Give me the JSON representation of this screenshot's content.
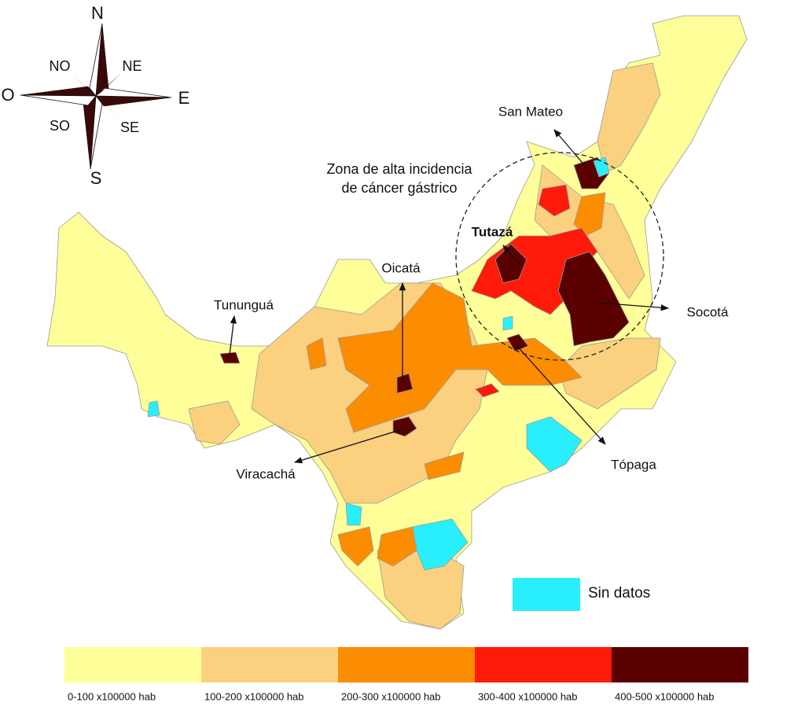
{
  "compass": {
    "n": "N",
    "ne": "NE",
    "e": "E",
    "se": "SE",
    "s": "S",
    "so": "SO",
    "o": "O",
    "no": "NO"
  },
  "annotation": {
    "zone": [
      "Zona de alta incidencia",
      "de cáncer gástrico"
    ]
  },
  "places": [
    {
      "label": "San Mateo"
    },
    {
      "label": "Tutazá"
    },
    {
      "label": "Oicatá"
    },
    {
      "label": "Tununguá"
    },
    {
      "label": "Socotá"
    },
    {
      "label": "Tópaga"
    },
    {
      "label": "Viracachá"
    }
  ],
  "legend": {
    "items": [
      {
        "label": "0-100 x100000 hab",
        "color": "#ffff99"
      },
      {
        "label": "100-200 x100000 hab",
        "color": "#fbd17f"
      },
      {
        "label": "200-300 x100000 hab",
        "color": "#fc8c00"
      },
      {
        "label": "300-400 x100000 hab",
        "color": "#ff1a0a"
      },
      {
        "label": "400-500 x100000 hab",
        "color": "#5a0000"
      }
    ],
    "no_data": {
      "label": "Sin datos",
      "color": "#29eefc"
    }
  }
}
